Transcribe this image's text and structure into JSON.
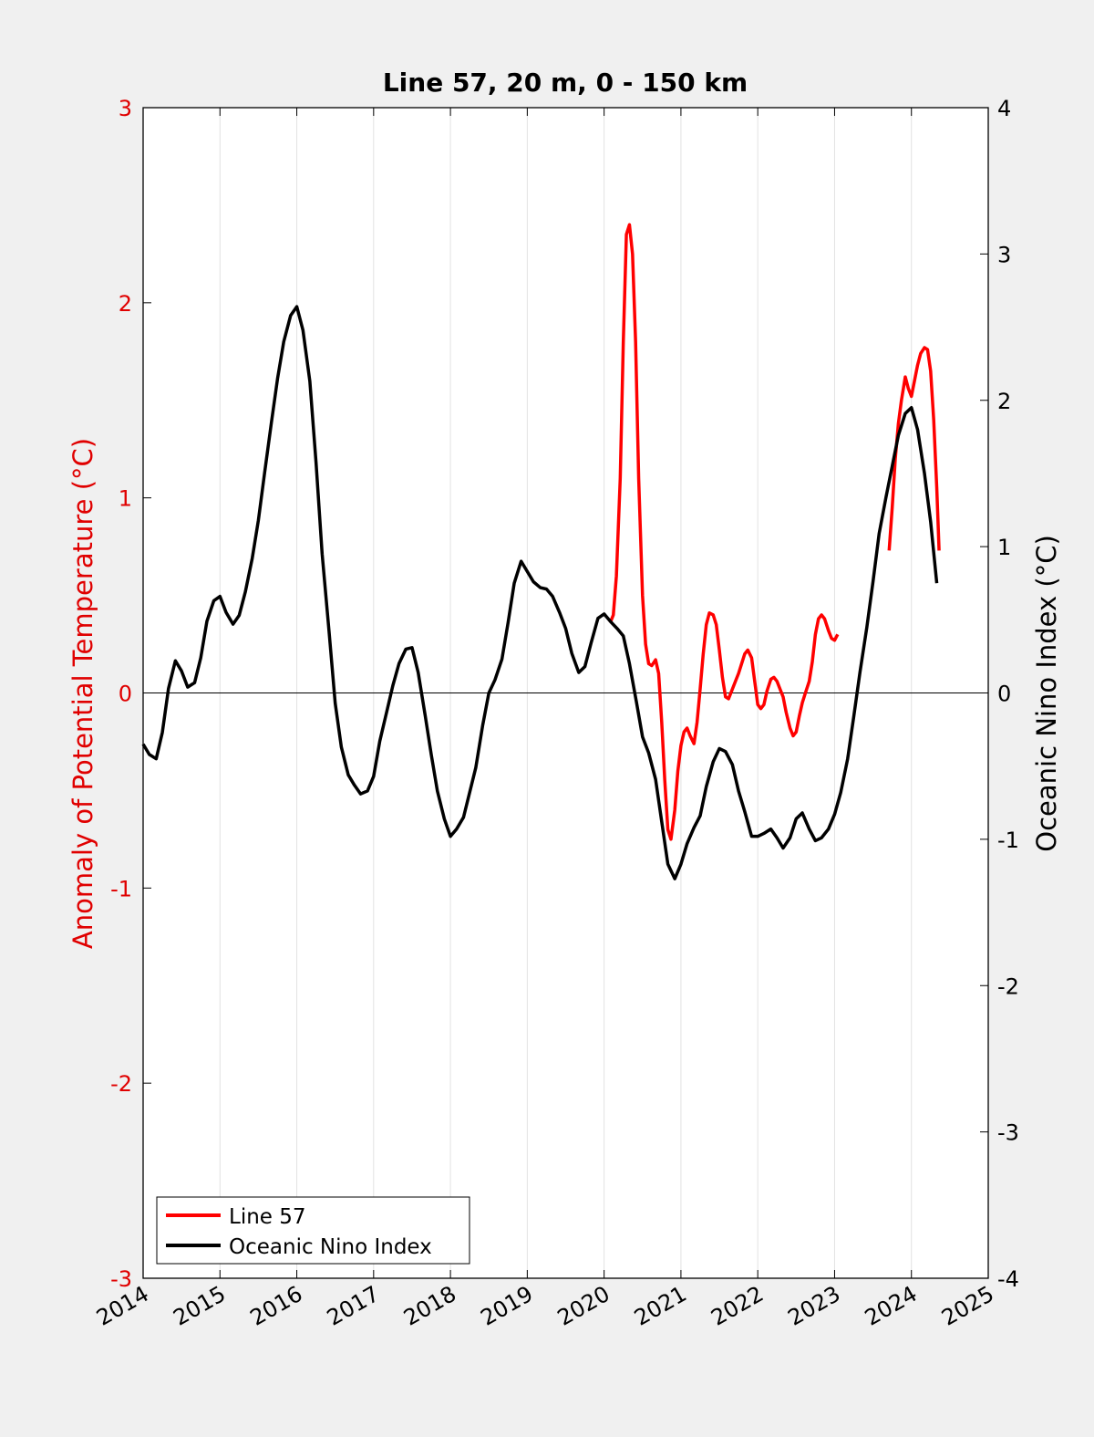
{
  "chart_data": {
    "type": "line",
    "title": "Line 57, 20 m, 0 - 150 km",
    "xlabel": "",
    "ylabel_left": "Anomaly of Potential Temperature (°C)",
    "ylabel_right": "Oceanic Nino Index (°C)",
    "xlim": [
      2014,
      2025
    ],
    "ylim_left": [
      -3,
      3
    ],
    "ylim_right": [
      -4,
      4
    ],
    "x_ticks": [
      "2014",
      "2015",
      "2016",
      "2017",
      "2018",
      "2019",
      "2020",
      "2021",
      "2022",
      "2023",
      "2024",
      "2025"
    ],
    "y_left_ticks": [
      "3",
      "2",
      "1",
      "0",
      "-1",
      "-2",
      "-3"
    ],
    "y_right_ticks": [
      "4",
      "3",
      "2",
      "1",
      "0",
      "-1",
      "-2",
      "-3",
      "-4"
    ],
    "grid": "vertical",
    "zero_line": true,
    "legend_position": "bottom-left",
    "colors": {
      "line57": "#ff0000",
      "oni": "#000000",
      "left_axis": "#e00000",
      "right_axis": "#000000"
    },
    "series": [
      {
        "name": "Line 57",
        "axis": "left",
        "segments": [
          [
            [
              2020.08,
              0.36
            ],
            [
              2020.12,
              0.4
            ],
            [
              2020.16,
              0.6
            ],
            [
              2020.21,
              1.1
            ],
            [
              2020.25,
              1.8
            ],
            [
              2020.29,
              2.35
            ],
            [
              2020.33,
              2.4
            ],
            [
              2020.37,
              2.25
            ],
            [
              2020.41,
              1.8
            ],
            [
              2020.45,
              1.1
            ],
            [
              2020.5,
              0.5
            ],
            [
              2020.54,
              0.25
            ],
            [
              2020.58,
              0.15
            ],
            [
              2020.62,
              0.14
            ],
            [
              2020.67,
              0.17
            ],
            [
              2020.71,
              0.1
            ],
            [
              2020.75,
              -0.15
            ],
            [
              2020.79,
              -0.45
            ],
            [
              2020.83,
              -0.7
            ],
            [
              2020.87,
              -0.75
            ],
            [
              2020.92,
              -0.6
            ],
            [
              2020.96,
              -0.4
            ],
            [
              2021.0,
              -0.27
            ],
            [
              2021.04,
              -0.2
            ],
            [
              2021.08,
              -0.18
            ],
            [
              2021.12,
              -0.22
            ],
            [
              2021.17,
              -0.26
            ],
            [
              2021.21,
              -0.15
            ],
            [
              2021.25,
              0.02
            ],
            [
              2021.29,
              0.2
            ],
            [
              2021.33,
              0.35
            ],
            [
              2021.37,
              0.41
            ],
            [
              2021.42,
              0.4
            ],
            [
              2021.46,
              0.35
            ],
            [
              2021.5,
              0.22
            ],
            [
              2021.54,
              0.08
            ],
            [
              2021.58,
              -0.02
            ],
            [
              2021.62,
              -0.03
            ],
            [
              2021.67,
              0.02
            ],
            [
              2021.71,
              0.06
            ],
            [
              2021.75,
              0.1
            ],
            [
              2021.79,
              0.15
            ],
            [
              2021.83,
              0.2
            ],
            [
              2021.87,
              0.22
            ],
            [
              2021.92,
              0.18
            ],
            [
              2021.96,
              0.06
            ],
            [
              2022.0,
              -0.06
            ],
            [
              2022.04,
              -0.08
            ],
            [
              2022.08,
              -0.06
            ],
            [
              2022.12,
              0.01
            ],
            [
              2022.17,
              0.07
            ],
            [
              2022.21,
              0.08
            ],
            [
              2022.25,
              0.06
            ],
            [
              2022.29,
              0.02
            ],
            [
              2022.33,
              -0.02
            ],
            [
              2022.37,
              -0.1
            ],
            [
              2022.42,
              -0.18
            ],
            [
              2022.46,
              -0.22
            ],
            [
              2022.5,
              -0.2
            ],
            [
              2022.54,
              -0.12
            ],
            [
              2022.58,
              -0.05
            ],
            [
              2022.62,
              0.0
            ],
            [
              2022.67,
              0.06
            ],
            [
              2022.71,
              0.16
            ],
            [
              2022.75,
              0.3
            ],
            [
              2022.79,
              0.38
            ],
            [
              2022.83,
              0.4
            ],
            [
              2022.87,
              0.38
            ],
            [
              2022.92,
              0.32
            ],
            [
              2022.96,
              0.28
            ],
            [
              2023.0,
              0.27
            ],
            [
              2023.04,
              0.3
            ]
          ],
          [
            [
              2023.71,
              0.73
            ],
            [
              2023.75,
              0.95
            ],
            [
              2023.79,
              1.2
            ],
            [
              2023.83,
              1.38
            ],
            [
              2023.87,
              1.5
            ],
            [
              2023.92,
              1.62
            ],
            [
              2023.96,
              1.56
            ],
            [
              2024.0,
              1.52
            ],
            [
              2024.04,
              1.6
            ],
            [
              2024.08,
              1.68
            ],
            [
              2024.12,
              1.74
            ],
            [
              2024.17,
              1.77
            ],
            [
              2024.21,
              1.76
            ],
            [
              2024.25,
              1.65
            ],
            [
              2024.29,
              1.4
            ],
            [
              2024.33,
              1.05
            ],
            [
              2024.36,
              0.73
            ]
          ]
        ]
      },
      {
        "name": "Oceanic Nino Index",
        "axis": "right",
        "segments": [
          [
            [
              2014.0,
              -0.35
            ],
            [
              2014.08,
              -0.42
            ],
            [
              2014.17,
              -0.45
            ],
            [
              2014.25,
              -0.27
            ],
            [
              2014.33,
              0.03
            ],
            [
              2014.42,
              0.22
            ],
            [
              2014.5,
              0.15
            ],
            [
              2014.58,
              0.04
            ],
            [
              2014.67,
              0.07
            ],
            [
              2014.75,
              0.24
            ],
            [
              2014.83,
              0.49
            ],
            [
              2014.92,
              0.63
            ],
            [
              2015.0,
              0.66
            ],
            [
              2015.08,
              0.55
            ],
            [
              2015.17,
              0.47
            ],
            [
              2015.25,
              0.53
            ],
            [
              2015.33,
              0.69
            ],
            [
              2015.42,
              0.92
            ],
            [
              2015.5,
              1.18
            ],
            [
              2015.58,
              1.5
            ],
            [
              2015.67,
              1.85
            ],
            [
              2015.75,
              2.15
            ],
            [
              2015.83,
              2.4
            ],
            [
              2015.92,
              2.58
            ],
            [
              2016.0,
              2.64
            ],
            [
              2016.08,
              2.48
            ],
            [
              2016.17,
              2.13
            ],
            [
              2016.25,
              1.58
            ],
            [
              2016.33,
              0.95
            ],
            [
              2016.42,
              0.42
            ],
            [
              2016.5,
              -0.07
            ],
            [
              2016.58,
              -0.37
            ],
            [
              2016.67,
              -0.56
            ],
            [
              2016.75,
              -0.63
            ],
            [
              2016.83,
              -0.69
            ],
            [
              2016.92,
              -0.67
            ],
            [
              2017.0,
              -0.57
            ],
            [
              2017.08,
              -0.33
            ],
            [
              2017.17,
              -0.13
            ],
            [
              2017.25,
              0.05
            ],
            [
              2017.33,
              0.2
            ],
            [
              2017.42,
              0.3
            ],
            [
              2017.5,
              0.31
            ],
            [
              2017.58,
              0.14
            ],
            [
              2017.67,
              -0.15
            ],
            [
              2017.75,
              -0.42
            ],
            [
              2017.83,
              -0.67
            ],
            [
              2017.92,
              -0.86
            ],
            [
              2018.0,
              -0.98
            ],
            [
              2018.08,
              -0.93
            ],
            [
              2018.17,
              -0.85
            ],
            [
              2018.25,
              -0.68
            ],
            [
              2018.33,
              -0.51
            ],
            [
              2018.42,
              -0.22
            ],
            [
              2018.5,
              0.0
            ],
            [
              2018.58,
              0.09
            ],
            [
              2018.67,
              0.23
            ],
            [
              2018.75,
              0.48
            ],
            [
              2018.83,
              0.75
            ],
            [
              2018.92,
              0.9
            ],
            [
              2019.0,
              0.83
            ],
            [
              2019.08,
              0.76
            ],
            [
              2019.17,
              0.72
            ],
            [
              2019.25,
              0.71
            ],
            [
              2019.33,
              0.66
            ],
            [
              2019.42,
              0.55
            ],
            [
              2019.5,
              0.44
            ],
            [
              2019.58,
              0.27
            ],
            [
              2019.67,
              0.14
            ],
            [
              2019.75,
              0.18
            ],
            [
              2019.83,
              0.34
            ],
            [
              2019.92,
              0.51
            ],
            [
              2020.0,
              0.54
            ],
            [
              2020.08,
              0.49
            ],
            [
              2020.17,
              0.44
            ],
            [
              2020.25,
              0.39
            ],
            [
              2020.33,
              0.2
            ],
            [
              2020.42,
              -0.06
            ],
            [
              2020.5,
              -0.3
            ],
            [
              2020.58,
              -0.41
            ],
            [
              2020.67,
              -0.59
            ],
            [
              2020.75,
              -0.88
            ],
            [
              2020.83,
              -1.17
            ],
            [
              2020.92,
              -1.27
            ],
            [
              2021.0,
              -1.17
            ],
            [
              2021.08,
              -1.03
            ],
            [
              2021.17,
              -0.92
            ],
            [
              2021.25,
              -0.84
            ],
            [
              2021.33,
              -0.64
            ],
            [
              2021.42,
              -0.47
            ],
            [
              2021.5,
              -0.38
            ],
            [
              2021.58,
              -0.4
            ],
            [
              2021.67,
              -0.49
            ],
            [
              2021.75,
              -0.67
            ],
            [
              2021.83,
              -0.81
            ],
            [
              2021.92,
              -0.98
            ],
            [
              2022.0,
              -0.98
            ],
            [
              2022.08,
              -0.96
            ],
            [
              2022.17,
              -0.93
            ],
            [
              2022.25,
              -0.99
            ],
            [
              2022.33,
              -1.06
            ],
            [
              2022.42,
              -0.99
            ],
            [
              2022.5,
              -0.86
            ],
            [
              2022.58,
              -0.82
            ],
            [
              2022.67,
              -0.93
            ],
            [
              2022.75,
              -1.01
            ],
            [
              2022.83,
              -0.99
            ],
            [
              2022.92,
              -0.93
            ],
            [
              2023.0,
              -0.83
            ],
            [
              2023.08,
              -0.68
            ],
            [
              2023.17,
              -0.45
            ],
            [
              2023.25,
              -0.16
            ],
            [
              2023.33,
              0.14
            ],
            [
              2023.42,
              0.45
            ],
            [
              2023.5,
              0.76
            ],
            [
              2023.58,
              1.09
            ],
            [
              2023.67,
              1.34
            ],
            [
              2023.75,
              1.55
            ],
            [
              2023.83,
              1.76
            ],
            [
              2023.92,
              1.91
            ],
            [
              2024.0,
              1.95
            ],
            [
              2024.08,
              1.8
            ],
            [
              2024.17,
              1.5
            ],
            [
              2024.25,
              1.17
            ],
            [
              2024.33,
              0.75
            ]
          ]
        ]
      }
    ]
  }
}
